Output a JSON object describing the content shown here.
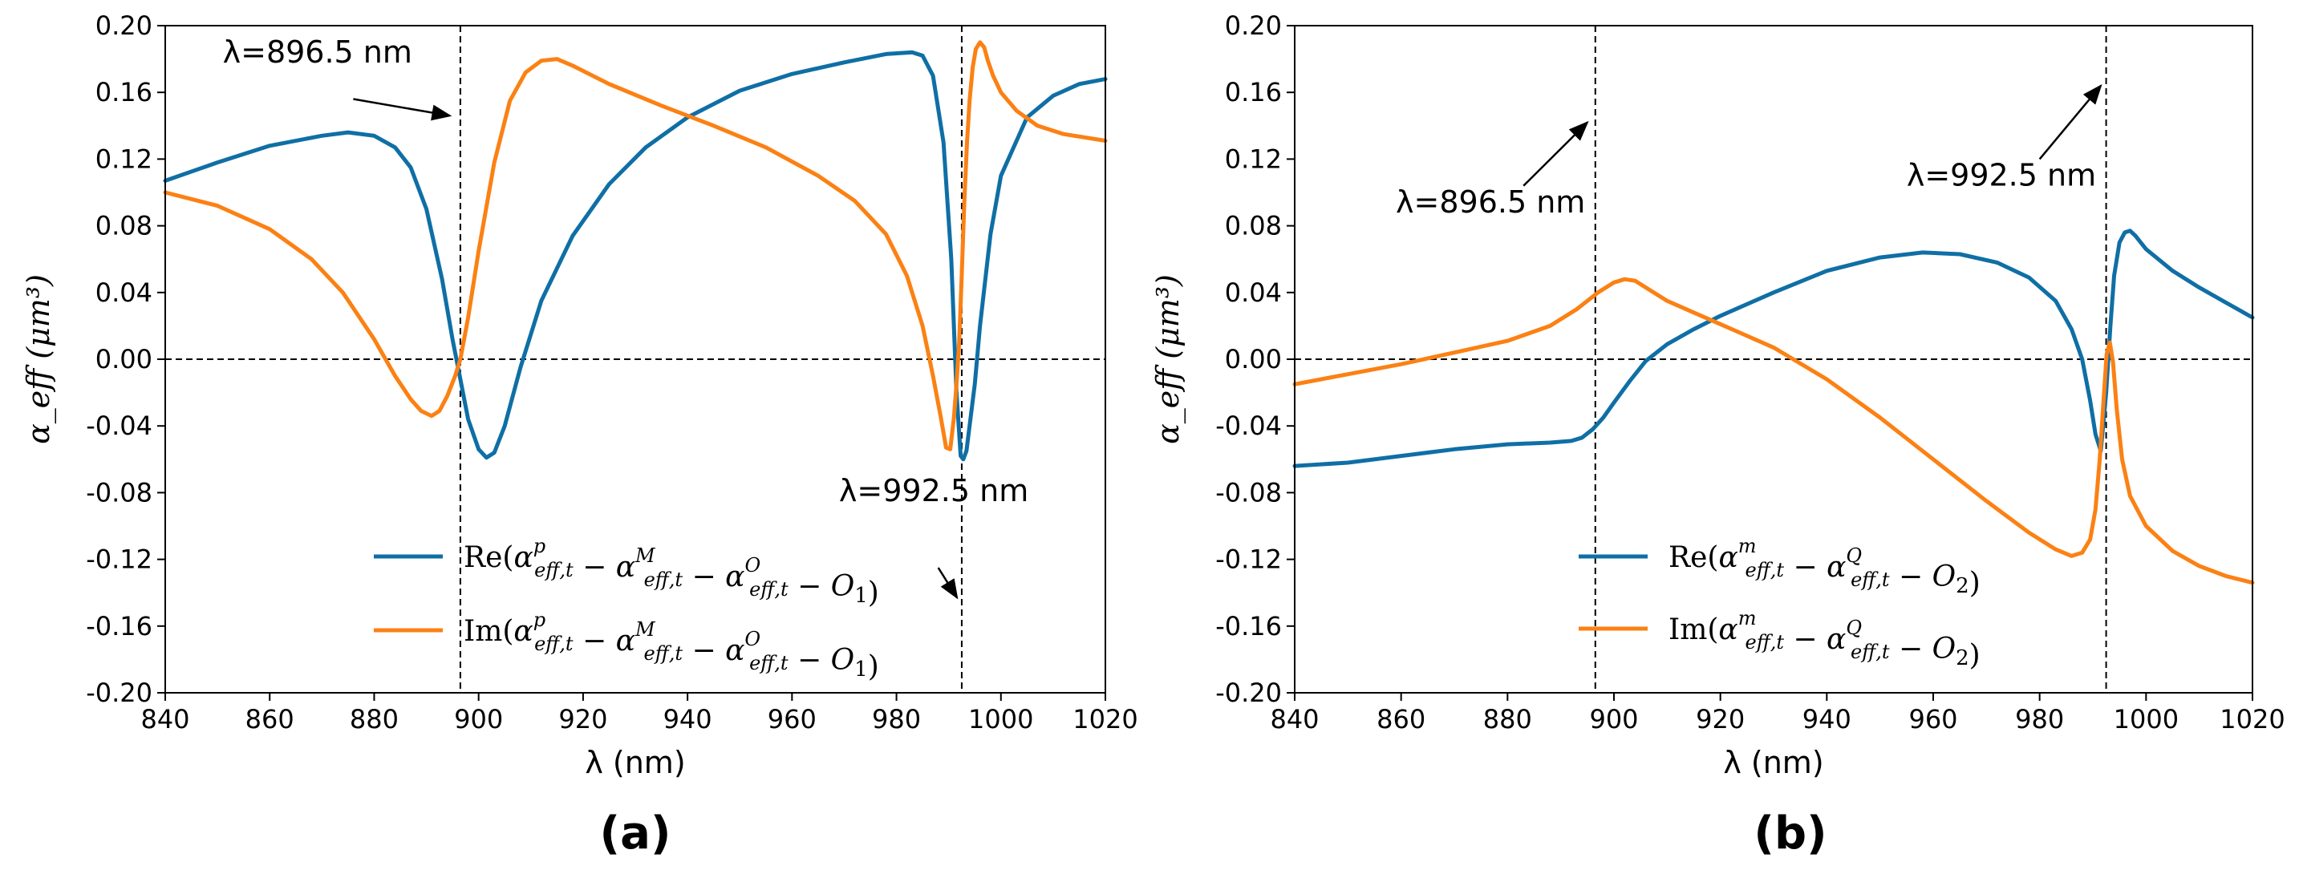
{
  "chart_data": [
    {
      "type": "line",
      "label": "(a)",
      "xlabel": "λ (nm)",
      "ylabel": "α_eff (μm³)",
      "xlim": [
        840,
        1020
      ],
      "ylim": [
        -0.2,
        0.2
      ],
      "xticks": [
        840,
        860,
        880,
        900,
        920,
        940,
        960,
        980,
        1000,
        1020
      ],
      "yticks": [
        0.2,
        0.16,
        0.12,
        0.08,
        0.04,
        0.0,
        -0.04,
        -0.08,
        -0.12,
        -0.16,
        -0.2
      ],
      "ytick_labels": [
        "0.20",
        "0.16",
        "0.12",
        "0.08",
        "0.04",
        "0.00",
        "-0.04",
        "-0.08",
        "-0.12",
        "-0.16",
        "-0.20"
      ],
      "hline": 0.0,
      "vlines": [
        896.5,
        992.5
      ],
      "annotations": [
        {
          "text": "λ=896.5 nm",
          "text_at": [
            851,
            0.178
          ],
          "arrow_from": [
            876,
            0.156
          ],
          "arrow_to": [
            894.5,
            0.146
          ]
        },
        {
          "text": "λ=992.5 nm",
          "text_at": [
            969,
            -0.085
          ],
          "arrow_from": [
            988,
            -0.125
          ],
          "arrow_to": [
            991.6,
            -0.143
          ]
        }
      ],
      "legend": {
        "position": "lower-center",
        "entries": [
          {
            "series": "Re",
            "prefix": "Re(",
            "suffix": ")",
            "terms": [
              [
                "α",
                "eff,t",
                "p"
              ],
              [
                "α",
                "eff,t",
                "M"
              ],
              [
                "α",
                "eff,t",
                "O"
              ],
              [
                "O",
                "1",
                ""
              ]
            ]
          },
          {
            "series": "Im",
            "prefix": "Im(",
            "suffix": ")",
            "terms": [
              [
                "α",
                "eff,t",
                "p"
              ],
              [
                "α",
                "eff,t",
                "M"
              ],
              [
                "α",
                "eff,t",
                "O"
              ],
              [
                "O",
                "1",
                ""
              ]
            ]
          }
        ]
      },
      "series": [
        {
          "name": "Re",
          "color": "#0f6fa5",
          "x": [
            840,
            850,
            860,
            870,
            875,
            880,
            884,
            887,
            890,
            893,
            895,
            896.5,
            898,
            900,
            901.5,
            903,
            905,
            908,
            912,
            918,
            925,
            932,
            940,
            950,
            960,
            970,
            978,
            983,
            985,
            987,
            989,
            990.5,
            991.5,
            992.3,
            992.8,
            993.4,
            994,
            995,
            996,
            998,
            1000,
            1005,
            1010,
            1015,
            1020
          ],
          "y": [
            0.107,
            0.118,
            0.128,
            0.134,
            0.136,
            0.134,
            0.127,
            0.115,
            0.09,
            0.048,
            0.012,
            -0.012,
            -0.036,
            -0.054,
            -0.059,
            -0.056,
            -0.04,
            -0.005,
            0.035,
            0.074,
            0.105,
            0.127,
            0.145,
            0.161,
            0.171,
            0.178,
            0.183,
            0.184,
            0.182,
            0.17,
            0.13,
            0.06,
            -0.02,
            -0.058,
            -0.06,
            -0.055,
            -0.04,
            -0.015,
            0.02,
            0.075,
            0.11,
            0.145,
            0.158,
            0.165,
            0.168
          ]
        },
        {
          "name": "Im",
          "color": "#fb8114",
          "x": [
            840,
            850,
            860,
            868,
            874,
            880,
            884,
            887,
            889,
            891,
            892.5,
            894,
            895.5,
            896.5,
            898,
            900,
            903,
            906,
            909,
            912,
            915,
            918,
            925,
            935,
            945,
            955,
            965,
            972,
            978,
            982,
            985,
            987,
            988.5,
            989.5,
            990.3,
            991,
            991.5,
            992,
            992.5,
            993,
            993.5,
            994,
            994.6,
            995.2,
            996,
            996.8,
            997.5,
            998.5,
            1000,
            1003,
            1007,
            1012,
            1020
          ],
          "y": [
            0.1,
            0.092,
            0.078,
            0.06,
            0.04,
            0.012,
            -0.01,
            -0.024,
            -0.031,
            -0.034,
            -0.031,
            -0.022,
            -0.01,
            0.0,
            0.025,
            0.065,
            0.118,
            0.155,
            0.172,
            0.179,
            0.18,
            0.176,
            0.165,
            0.152,
            0.14,
            0.127,
            0.11,
            0.095,
            0.075,
            0.05,
            0.02,
            -0.01,
            -0.035,
            -0.053,
            -0.054,
            -0.035,
            -0.015,
            0.01,
            0.05,
            0.095,
            0.13,
            0.155,
            0.175,
            0.186,
            0.19,
            0.187,
            0.179,
            0.17,
            0.16,
            0.149,
            0.14,
            0.135,
            0.131
          ]
        }
      ]
    },
    {
      "type": "line",
      "label": "(b)",
      "xlabel": "λ (nm)",
      "ylabel": "α_eff (μm³)",
      "xlim": [
        840,
        1020
      ],
      "ylim": [
        -0.2,
        0.2
      ],
      "xticks": [
        840,
        860,
        880,
        900,
        920,
        940,
        960,
        980,
        1000,
        1020
      ],
      "yticks": [
        0.2,
        0.16,
        0.12,
        0.08,
        0.04,
        0.0,
        -0.04,
        -0.08,
        -0.12,
        -0.16,
        -0.2
      ],
      "ytick_labels": [
        "0.20",
        "0.16",
        "0.12",
        "0.08",
        "0.04",
        "0.00",
        "-0.04",
        "-0.08",
        "-0.12",
        "-0.16",
        "-0.20"
      ],
      "hline": 0.0,
      "vlines": [
        896.5,
        992.5
      ],
      "annotations": [
        {
          "text": "λ=896.5 nm",
          "text_at": [
            859,
            0.088
          ],
          "arrow_from": [
            883,
            0.104
          ],
          "arrow_to": [
            895,
            0.142
          ]
        },
        {
          "text": "λ=992.5 nm",
          "text_at": [
            955,
            0.104
          ],
          "arrow_from": [
            980,
            0.12
          ],
          "arrow_to": [
            991.5,
            0.164
          ]
        }
      ],
      "legend": {
        "position": "lower-right",
        "entries": [
          {
            "series": "Re",
            "prefix": "Re(",
            "suffix": ")",
            "terms": [
              [
                "α",
                "eff,t",
                "m"
              ],
              [
                "α",
                "eff,t",
                "Q"
              ],
              [
                "O",
                "2",
                ""
              ]
            ]
          },
          {
            "series": "Im",
            "prefix": "Im(",
            "suffix": ")",
            "terms": [
              [
                "α",
                "eff,t",
                "m"
              ],
              [
                "α",
                "eff,t",
                "Q"
              ],
              [
                "O",
                "2",
                ""
              ]
            ]
          }
        ]
      },
      "series": [
        {
          "name": "Re",
          "color": "#0f6fa5",
          "x": [
            840,
            850,
            860,
            870,
            880,
            888,
            892,
            894,
            896,
            898,
            900,
            903,
            906,
            910,
            915,
            920,
            930,
            940,
            950,
            958,
            965,
            972,
            978,
            983,
            986,
            988,
            989.5,
            990.5,
            991.5,
            992.5,
            993.3,
            994,
            995,
            996,
            997,
            998,
            1000,
            1005,
            1010,
            1015,
            1020
          ],
          "y": [
            -0.064,
            -0.062,
            -0.058,
            -0.054,
            -0.051,
            -0.05,
            -0.049,
            -0.047,
            -0.042,
            -0.035,
            -0.026,
            -0.013,
            -0.001,
            0.009,
            0.018,
            0.026,
            0.04,
            0.053,
            0.061,
            0.064,
            0.063,
            0.058,
            0.049,
            0.035,
            0.018,
            0.0,
            -0.025,
            -0.045,
            -0.055,
            -0.02,
            0.02,
            0.05,
            0.07,
            0.076,
            0.077,
            0.074,
            0.066,
            0.053,
            0.043,
            0.034,
            0.025
          ]
        },
        {
          "name": "Im",
          "color": "#fb8114",
          "x": [
            840,
            850,
            860,
            870,
            880,
            888,
            893,
            897,
            900,
            902,
            904,
            906,
            910,
            915,
            920,
            930,
            940,
            950,
            960,
            970,
            978,
            983,
            986,
            988,
            989.5,
            990.5,
            991.3,
            992,
            992.6,
            993.2,
            993.8,
            994.5,
            995.5,
            997,
            1000,
            1005,
            1010,
            1015,
            1020
          ],
          "y": [
            -0.015,
            -0.009,
            -0.003,
            0.004,
            0.011,
            0.02,
            0.03,
            0.04,
            0.046,
            0.048,
            0.047,
            0.043,
            0.035,
            0.028,
            0.021,
            0.007,
            -0.012,
            -0.035,
            -0.06,
            -0.085,
            -0.104,
            -0.114,
            -0.118,
            -0.116,
            -0.108,
            -0.09,
            -0.06,
            -0.025,
            0.003,
            0.01,
            -0.002,
            -0.03,
            -0.06,
            -0.082,
            -0.1,
            -0.115,
            -0.124,
            -0.13,
            -0.134
          ]
        }
      ]
    }
  ]
}
